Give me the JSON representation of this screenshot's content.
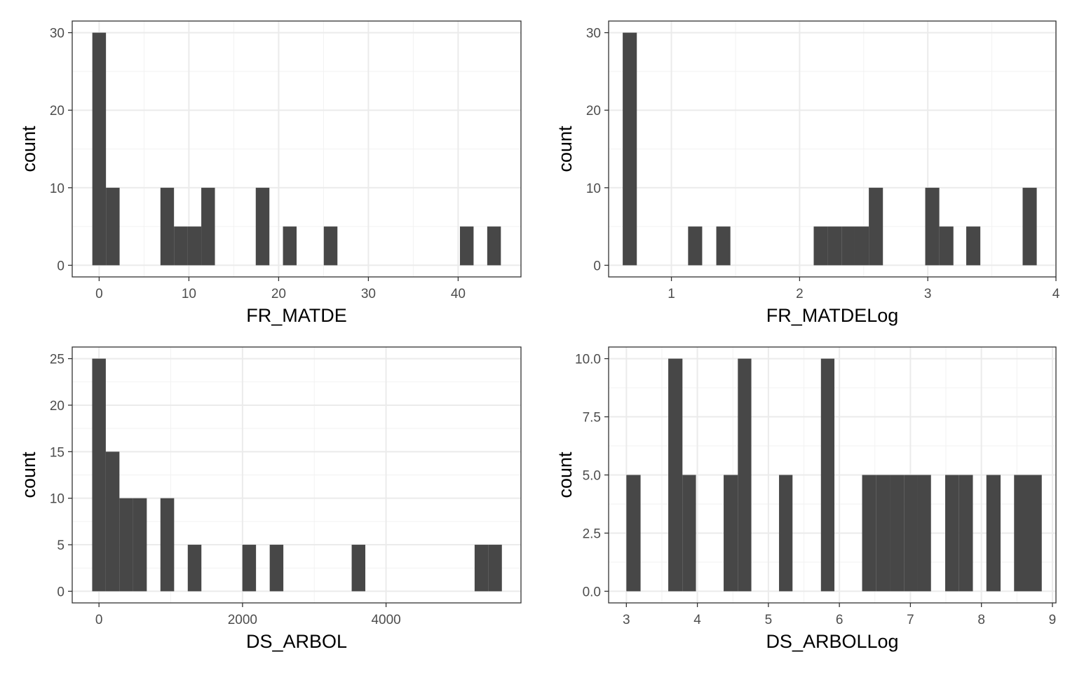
{
  "chart_data": [
    {
      "type": "bar",
      "xlabel": "FR_MATDE",
      "ylabel": "count",
      "xlim": [
        -3,
        47
      ],
      "ylim": [
        -1.5,
        31.5
      ],
      "xticks": [
        {
          "v": 0,
          "t": "0"
        },
        {
          "v": 10,
          "t": "10"
        },
        {
          "v": 20,
          "t": "20"
        },
        {
          "v": 30,
          "t": "30"
        },
        {
          "v": 40,
          "t": "40"
        }
      ],
      "yticks": [
        {
          "v": 0,
          "t": "0"
        },
        {
          "v": 10,
          "t": "10"
        },
        {
          "v": 20,
          "t": "20"
        },
        {
          "v": 30,
          "t": "30"
        }
      ],
      "bar_color": "#474747",
      "bars": [
        {
          "x0": -0.76,
          "x1": 0.76,
          "y": 30
        },
        {
          "x0": 0.76,
          "x1": 2.28,
          "y": 10
        },
        {
          "x0": 6.83,
          "x1": 8.34,
          "y": 10
        },
        {
          "x0": 8.34,
          "x1": 9.86,
          "y": 5
        },
        {
          "x0": 9.86,
          "x1": 11.38,
          "y": 5
        },
        {
          "x0": 11.38,
          "x1": 12.9,
          "y": 10
        },
        {
          "x0": 17.45,
          "x1": 18.97,
          "y": 10
        },
        {
          "x0": 20.48,
          "x1": 22.0,
          "y": 5
        },
        {
          "x0": 25.03,
          "x1": 26.55,
          "y": 5
        },
        {
          "x0": 40.2,
          "x1": 41.72,
          "y": 5
        },
        {
          "x0": 43.24,
          "x1": 44.76,
          "y": 5
        }
      ]
    },
    {
      "type": "bar",
      "xlabel": "FR_MATDELog",
      "ylabel": "count",
      "xlim": [
        0.51,
        4.0
      ],
      "ylim": [
        -1.5,
        31.5
      ],
      "xticks": [
        {
          "v": 1,
          "t": "1"
        },
        {
          "v": 2,
          "t": "2"
        },
        {
          "v": 3,
          "t": "3"
        },
        {
          "v": 4,
          "t": "4"
        }
      ],
      "yticks": [
        {
          "v": 0,
          "t": "0"
        },
        {
          "v": 10,
          "t": "10"
        },
        {
          "v": 20,
          "t": "20"
        },
        {
          "v": 30,
          "t": "30"
        }
      ],
      "bar_color": "#474747",
      "bars": [
        {
          "x0": 0.62,
          "x1": 0.73,
          "y": 30
        },
        {
          "x0": 1.13,
          "x1": 1.24,
          "y": 5
        },
        {
          "x0": 1.35,
          "x1": 1.46,
          "y": 5
        },
        {
          "x0": 2.11,
          "x1": 2.22,
          "y": 5
        },
        {
          "x0": 2.22,
          "x1": 2.33,
          "y": 5
        },
        {
          "x0": 2.33,
          "x1": 2.43,
          "y": 5
        },
        {
          "x0": 2.43,
          "x1": 2.54,
          "y": 5
        },
        {
          "x0": 2.54,
          "x1": 2.65,
          "y": 10
        },
        {
          "x0": 2.98,
          "x1": 3.09,
          "y": 10
        },
        {
          "x0": 3.09,
          "x1": 3.2,
          "y": 5
        },
        {
          "x0": 3.3,
          "x1": 3.41,
          "y": 5
        },
        {
          "x0": 3.74,
          "x1": 3.85,
          "y": 10
        }
      ]
    },
    {
      "type": "bar",
      "xlabel": "DS_ARBOL",
      "ylabel": "count",
      "xlim": [
        -373,
        5880
      ],
      "ylim": [
        -1.25,
        26.25
      ],
      "xticks": [
        {
          "v": 0,
          "t": "0"
        },
        {
          "v": 2000,
          "t": "2000"
        },
        {
          "v": 4000,
          "t": "4000"
        }
      ],
      "yticks": [
        {
          "v": 0,
          "t": "0"
        },
        {
          "v": 5,
          "t": "5"
        },
        {
          "v": 10,
          "t": "10"
        },
        {
          "v": 15,
          "t": "15"
        },
        {
          "v": 20,
          "t": "20"
        },
        {
          "v": 25,
          "t": "25"
        }
      ],
      "bar_color": "#474747",
      "bars": [
        {
          "x0": -95,
          "x1": 95,
          "y": 25
        },
        {
          "x0": 95,
          "x1": 285,
          "y": 15
        },
        {
          "x0": 285,
          "x1": 476,
          "y": 10
        },
        {
          "x0": 476,
          "x1": 666,
          "y": 10
        },
        {
          "x0": 856,
          "x1": 1047,
          "y": 10
        },
        {
          "x0": 1237,
          "x1": 1427,
          "y": 5
        },
        {
          "x0": 1998,
          "x1": 2188,
          "y": 5
        },
        {
          "x0": 2379,
          "x1": 2569,
          "y": 5
        },
        {
          "x0": 3521,
          "x1": 3711,
          "y": 5
        },
        {
          "x0": 5234,
          "x1": 5424,
          "y": 5
        },
        {
          "x0": 5424,
          "x1": 5614,
          "y": 5
        }
      ]
    },
    {
      "type": "bar",
      "xlabel": "DS_ARBOLLog",
      "ylabel": "count",
      "xlim": [
        2.75,
        9.05
      ],
      "ylim": [
        -0.5,
        10.5
      ],
      "xticks": [
        {
          "v": 3,
          "t": "3"
        },
        {
          "v": 4,
          "t": "4"
        },
        {
          "v": 5,
          "t": "5"
        },
        {
          "v": 6,
          "t": "6"
        },
        {
          "v": 7,
          "t": "7"
        },
        {
          "v": 8,
          "t": "8"
        },
        {
          "v": 9,
          "t": "9"
        }
      ],
      "yticks": [
        {
          "v": 0,
          "t": "0.0"
        },
        {
          "v": 2.5,
          "t": "2.5"
        },
        {
          "v": 5,
          "t": "5.0"
        },
        {
          "v": 7.5,
          "t": "7.5"
        },
        {
          "v": 10,
          "t": "10.0"
        }
      ],
      "bar_color": "#474747",
      "bars": [
        {
          "x0": 3.0,
          "x1": 3.2,
          "y": 5
        },
        {
          "x0": 3.59,
          "x1": 3.79,
          "y": 10
        },
        {
          "x0": 3.79,
          "x1": 3.98,
          "y": 5
        },
        {
          "x0": 4.37,
          "x1": 4.57,
          "y": 5
        },
        {
          "x0": 4.57,
          "x1": 4.76,
          "y": 10
        },
        {
          "x0": 5.15,
          "x1": 5.34,
          "y": 5
        },
        {
          "x0": 5.74,
          "x1": 5.93,
          "y": 10
        },
        {
          "x0": 6.32,
          "x1": 6.52,
          "y": 5
        },
        {
          "x0": 6.52,
          "x1": 6.71,
          "y": 5
        },
        {
          "x0": 6.71,
          "x1": 6.91,
          "y": 5
        },
        {
          "x0": 6.91,
          "x1": 7.1,
          "y": 5
        },
        {
          "x0": 7.1,
          "x1": 7.29,
          "y": 5
        },
        {
          "x0": 7.49,
          "x1": 7.68,
          "y": 5
        },
        {
          "x0": 7.68,
          "x1": 7.88,
          "y": 5
        },
        {
          "x0": 8.07,
          "x1": 8.27,
          "y": 5
        },
        {
          "x0": 8.46,
          "x1": 8.66,
          "y": 5
        },
        {
          "x0": 8.66,
          "x1": 8.85,
          "y": 5
        }
      ]
    }
  ]
}
